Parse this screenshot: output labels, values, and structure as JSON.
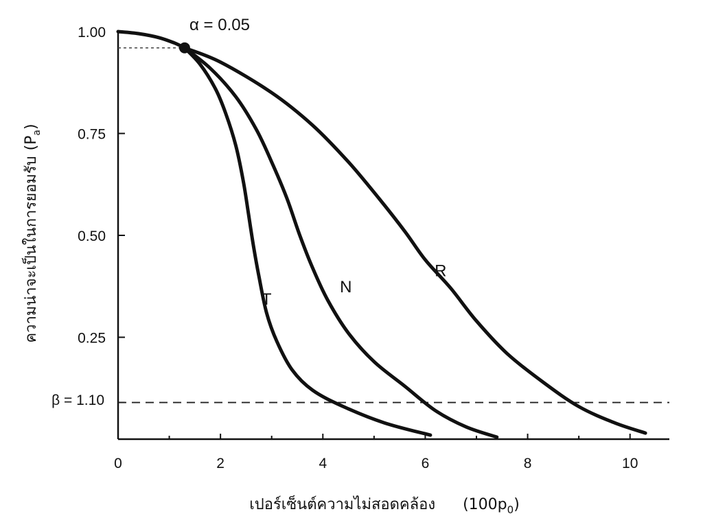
{
  "chart_data": {
    "type": "line",
    "title": "",
    "xlabel": "เปอร์เซ็นต์ความไม่สอดคล้อง",
    "xlabel_unit": "(100p",
    "xlabel_unit_sub": "0",
    "xlabel_unit_close": ")",
    "ylabel": "ความน่าจะเป็นในการยอมรับ",
    "ylabel_unit": "(P",
    "ylabel_unit_sub": "a",
    "ylabel_unit_close": ")",
    "xlim": [
      0,
      10.5
    ],
    "ylim": [
      0,
      1.0
    ],
    "x_ticks": [
      0,
      2,
      4,
      6,
      8,
      10
    ],
    "x_tick_labels": [
      "0",
      "2",
      "4",
      "6",
      "8",
      "10"
    ],
    "y_ticks": [
      0.25,
      0.5,
      0.75,
      1.0
    ],
    "y_tick_labels": [
      "0.25",
      "0.50",
      "0.75",
      "1.00"
    ],
    "beta_label": "β = 1.10",
    "beta_level": 0.09,
    "alpha_label": "α = 0.05",
    "alpha_point": {
      "x": 1.3,
      "y": 0.96
    },
    "grid": false,
    "series": [
      {
        "name": "T",
        "points": [
          [
            1.3,
            0.96
          ],
          [
            1.6,
            0.92
          ],
          [
            1.9,
            0.86
          ],
          [
            2.1,
            0.8
          ],
          [
            2.3,
            0.72
          ],
          [
            2.45,
            0.63
          ],
          [
            2.55,
            0.55
          ],
          [
            2.65,
            0.47
          ],
          [
            2.75,
            0.4
          ],
          [
            2.9,
            0.31
          ],
          [
            3.1,
            0.24
          ],
          [
            3.4,
            0.17
          ],
          [
            3.8,
            0.12
          ],
          [
            4.4,
            0.08
          ],
          [
            5.2,
            0.04
          ],
          [
            6.1,
            0.01
          ]
        ]
      },
      {
        "name": "N",
        "points": [
          [
            1.3,
            0.96
          ],
          [
            1.8,
            0.91
          ],
          [
            2.3,
            0.84
          ],
          [
            2.7,
            0.76
          ],
          [
            3.0,
            0.68
          ],
          [
            3.3,
            0.59
          ],
          [
            3.55,
            0.5
          ],
          [
            3.8,
            0.42
          ],
          [
            4.1,
            0.34
          ],
          [
            4.5,
            0.26
          ],
          [
            5.0,
            0.19
          ],
          [
            5.6,
            0.13
          ],
          [
            6.2,
            0.07
          ],
          [
            6.8,
            0.03
          ],
          [
            7.4,
            0.005
          ]
        ]
      },
      {
        "name": "R",
        "points": [
          [
            1.3,
            0.96
          ],
          [
            2.0,
            0.925
          ],
          [
            3.0,
            0.85
          ],
          [
            3.8,
            0.77
          ],
          [
            4.5,
            0.68
          ],
          [
            5.1,
            0.59
          ],
          [
            5.6,
            0.51
          ],
          [
            6.0,
            0.44
          ],
          [
            6.5,
            0.37
          ],
          [
            7.0,
            0.29
          ],
          [
            7.6,
            0.21
          ],
          [
            8.3,
            0.14
          ],
          [
            9.0,
            0.08
          ],
          [
            9.7,
            0.04
          ],
          [
            10.3,
            0.015
          ]
        ]
      }
    ],
    "curve_label_positions": [
      {
        "name": "T",
        "x": 2.9,
        "y": 0.33
      },
      {
        "name": "N",
        "x": 4.45,
        "y": 0.36
      },
      {
        "name": "R",
        "x": 6.3,
        "y": 0.4
      }
    ]
  }
}
